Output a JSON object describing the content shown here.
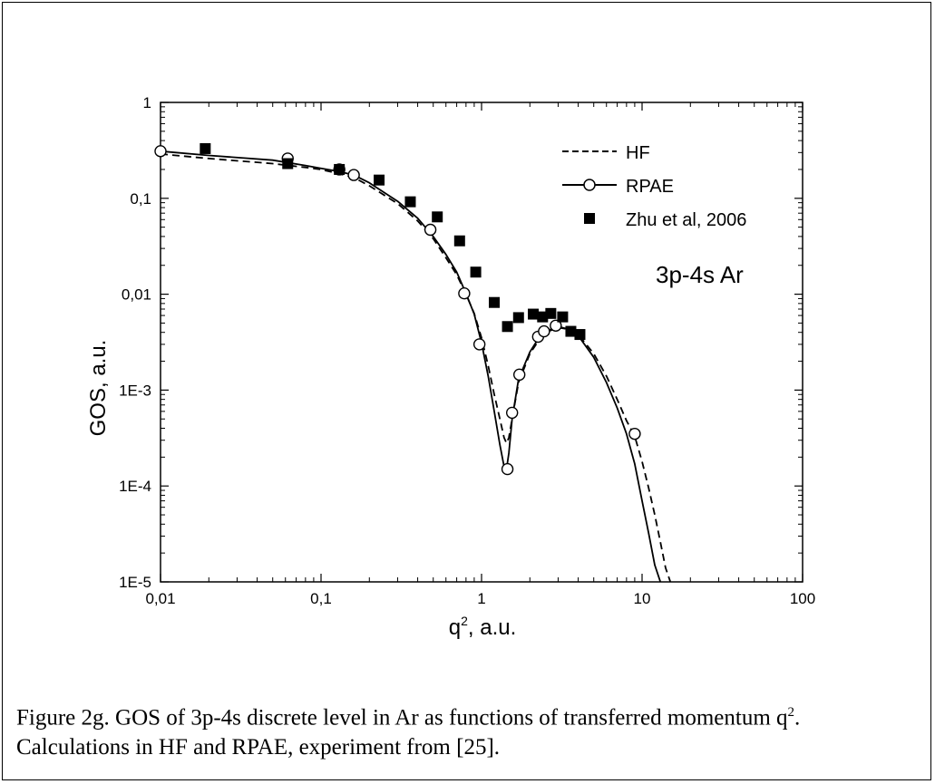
{
  "chart_data": {
    "type": "line",
    "title": "",
    "xlabel": "q",
    "xlabel_sup": "2",
    "xlabel_suffix": ", a.u.",
    "ylabel": "GOS, a.u.",
    "xscale": "log",
    "yscale": "log",
    "xlim": [
      0.01,
      100
    ],
    "ylim": [
      1e-05,
      1
    ],
    "x_tick_labels": [
      "0,01",
      "0,1",
      "1",
      "10",
      "100"
    ],
    "y_tick_labels": [
      "1E-5",
      "1E-4",
      "1E-3",
      "0,01",
      "0,1",
      "1"
    ],
    "annotation": "3p-4s Ar",
    "legend_position": "top-right",
    "series": [
      {
        "name": "HF",
        "style": "dashed",
        "x": [
          0.01,
          0.02,
          0.05,
          0.08,
          0.1,
          0.13,
          0.16,
          0.2,
          0.3,
          0.4,
          0.5,
          0.6,
          0.7,
          0.8,
          0.9,
          1.0,
          1.1,
          1.2,
          1.3,
          1.38,
          1.43,
          1.48,
          1.55,
          1.7,
          2.0,
          2.3,
          2.6,
          3.0,
          3.5,
          4.0,
          5.0,
          6.0,
          7.0,
          8.0,
          9.0,
          10.0,
          11.0,
          12.0,
          13.0,
          14.0,
          15.0
        ],
        "y": [
          0.29,
          0.26,
          0.23,
          0.21,
          0.2,
          0.18,
          0.165,
          0.135,
          0.088,
          0.058,
          0.038,
          0.024,
          0.016,
          0.01,
          0.0063,
          0.0035,
          0.0018,
          0.0009,
          0.0005,
          0.00032,
          0.00028,
          0.00032,
          0.0005,
          0.0012,
          0.0024,
          0.0034,
          0.0041,
          0.0045,
          0.0043,
          0.0038,
          0.0024,
          0.0014,
          0.0008,
          0.00048,
          0.00033,
          0.00018,
          9.5e-05,
          5e-05,
          2.6e-05,
          1.4e-05,
          1e-05
        ]
      },
      {
        "name": "RPAE",
        "style": "solid-circles",
        "x": [
          0.01,
          0.02,
          0.05,
          0.08,
          0.1,
          0.13,
          0.16,
          0.2,
          0.3,
          0.4,
          0.5,
          0.6,
          0.7,
          0.8,
          0.9,
          1.0,
          1.1,
          1.2,
          1.3,
          1.38,
          1.43,
          1.48,
          1.55,
          1.7,
          2.0,
          2.3,
          2.6,
          3.0,
          3.5,
          4.0,
          5.0,
          6.0,
          7.0,
          8.0,
          9.0,
          10.0,
          11.0,
          12.0,
          13.0
        ],
        "y": [
          0.31,
          0.28,
          0.25,
          0.22,
          0.205,
          0.19,
          0.175,
          0.145,
          0.093,
          0.062,
          0.04,
          0.026,
          0.017,
          0.0102,
          0.0062,
          0.0031,
          0.0014,
          0.0006,
          0.00027,
          0.00016,
          0.00015,
          0.00022,
          0.0005,
          0.0013,
          0.0025,
          0.0036,
          0.0042,
          0.0046,
          0.0043,
          0.0037,
          0.0022,
          0.0012,
          0.00065,
          0.00035,
          0.00017,
          7e-05,
          3.2e-05,
          1.5e-05,
          1e-05
        ],
        "marker_x": [
          0.01,
          0.062,
          0.13,
          0.16,
          0.48,
          0.78,
          0.97,
          1.45,
          1.55,
          1.72,
          2.25,
          2.45,
          2.9,
          9.0
        ],
        "marker_y": [
          0.31,
          0.26,
          0.2,
          0.175,
          0.047,
          0.0102,
          0.003,
          0.00015,
          0.00058,
          0.00145,
          0.0036,
          0.0041,
          0.0047,
          0.00035
        ]
      },
      {
        "name": "Zhu et al, 2006",
        "style": "filled-squares",
        "x": [
          0.019,
          0.062,
          0.13,
          0.23,
          0.36,
          0.53,
          0.73,
          0.92,
          1.2,
          1.45,
          1.7,
          2.1,
          2.4,
          2.7,
          3.2,
          3.6,
          4.1
        ],
        "y": [
          0.33,
          0.23,
          0.2,
          0.155,
          0.092,
          0.064,
          0.036,
          0.017,
          0.0082,
          0.0046,
          0.0057,
          0.0062,
          0.0058,
          0.0063,
          0.0058,
          0.0041,
          0.0038
        ]
      }
    ]
  }
}
